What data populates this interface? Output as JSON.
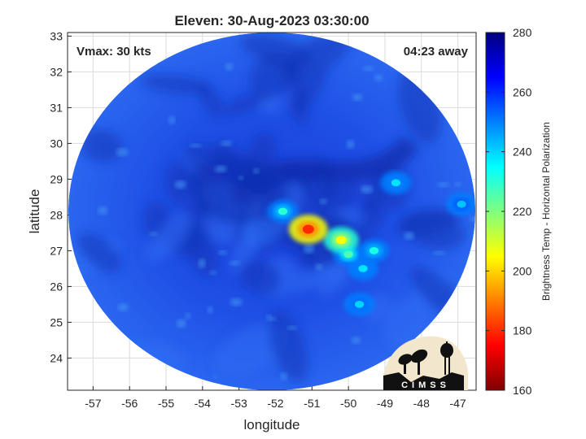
{
  "title": "Eleven: 30-Aug-2023 03:30:00",
  "annotations": {
    "vmax": "Vmax: 30 kts",
    "away": "04:23 away"
  },
  "xlabel": "longitude",
  "ylabel": "latitude",
  "colorbar": {
    "label": "Brightness Temp - Horizontal Polarization",
    "range": [
      160,
      280
    ],
    "ticks": [
      "280",
      "260",
      "240",
      "220",
      "200",
      "180",
      "160"
    ],
    "colormap": [
      "#7f0000",
      "#ff0000",
      "#ff7f00",
      "#ffff00",
      "#7fff7f",
      "#00ffff",
      "#007fff",
      "#0000ff",
      "#00007f"
    ]
  },
  "logo": {
    "text": "CIMSS"
  },
  "map": {
    "lon_range": [
      -57.7,
      -46.5
    ],
    "lat_range": [
      23.1,
      33.1
    ],
    "x_ticks": [
      "-57",
      "-56",
      "-55",
      "-54",
      "-53",
      "-52",
      "-51",
      "-50",
      "-49",
      "-48",
      "-47"
    ],
    "y_ticks": [
      "24",
      "25",
      "26",
      "27",
      "28",
      "29",
      "30",
      "31",
      "32",
      "33"
    ],
    "swath_center": {
      "lon": -52.1,
      "lat": 28.0
    },
    "background_temp": 262,
    "storm_features": [
      {
        "lon": -51.1,
        "lat": 27.6,
        "temp": 180
      },
      {
        "lon": -50.2,
        "lat": 27.3,
        "temp": 205
      },
      {
        "lon": -51.8,
        "lat": 28.1,
        "temp": 230
      },
      {
        "lon": -50.0,
        "lat": 26.9,
        "temp": 225
      },
      {
        "lon": -49.3,
        "lat": 27.0,
        "temp": 232
      },
      {
        "lon": -49.6,
        "lat": 26.5,
        "temp": 238
      },
      {
        "lon": -48.7,
        "lat": 28.9,
        "temp": 238
      },
      {
        "lon": -49.7,
        "lat": 25.5,
        "temp": 240
      },
      {
        "lon": -46.9,
        "lat": 28.3,
        "temp": 242
      }
    ]
  }
}
